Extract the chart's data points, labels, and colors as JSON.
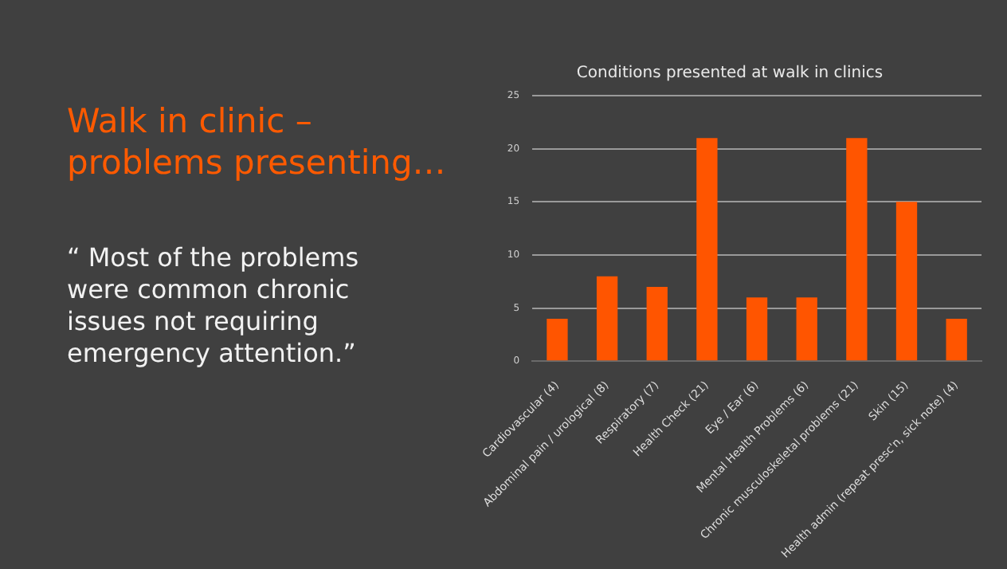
{
  "chart_data": {
    "type": "bar",
    "title": "Conditions presented at walk in clinics",
    "annotations": [
      "Walk in clinic – problems presenting…",
      "“ Most of the problems were common chronic issues not requiring emergency attention.”"
    ],
    "categories": [
      "Cardiovascular (4)",
      "Abdominal pain / urological (8)",
      "Respiratory (7)",
      "Health Check (21)",
      "Eye / Ear (6)",
      "Mental Health Problems (6)",
      "Chronic musculoskeletal problems (21)",
      "Skin (15)",
      "Health admin (repeat presc'n, sick note) (4)"
    ],
    "values": [
      4,
      8,
      7,
      21,
      6,
      6,
      21,
      15,
      4
    ],
    "color": "#ff5500",
    "ylim": [
      0,
      25
    ],
    "yticks": [
      0,
      5,
      10,
      15,
      20,
      25
    ],
    "grid": "y"
  }
}
